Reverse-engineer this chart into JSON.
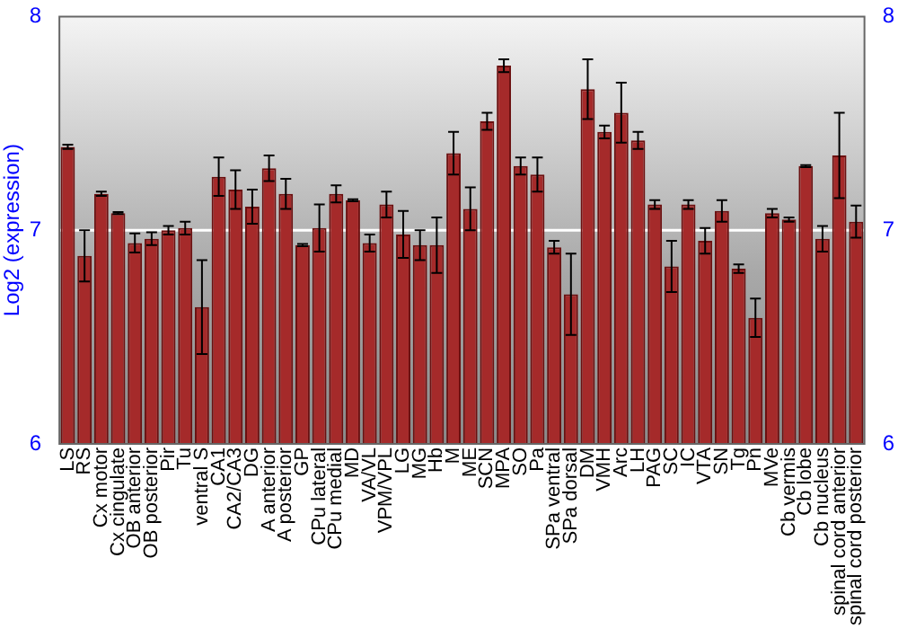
{
  "chart_data": {
    "type": "bar",
    "ylabel": "Log2 (expression)",
    "categories": [
      "LS",
      "RS",
      "Cx motor",
      "Cx cingulate",
      "OB anterior",
      "OB posterior",
      "Pir",
      "Tu",
      "ventral S",
      "CA1",
      "CA2/CA3",
      "DG",
      "A anterior",
      "A posterior",
      "GP",
      "CPu lateral",
      "CPu medial",
      "MD",
      "VA/VL",
      "VPM/VPL",
      "LG",
      "MG",
      "Hb",
      "M",
      "ME",
      "SCN",
      "MPA",
      "SO",
      "Pa",
      "SPa ventral",
      "SPa dorsal",
      "DM",
      "VMH",
      "Arc",
      "LH",
      "PAG",
      "SC",
      "IC",
      "VTA",
      "SN",
      "Tg",
      "Pn",
      "MVe",
      "Cb vermis",
      "Cb lobe",
      "Cb nucleus",
      "spinal cord anterior",
      "spinal cord posterior"
    ],
    "values": [
      7.39,
      6.88,
      7.17,
      7.08,
      6.94,
      6.96,
      7.0,
      7.01,
      6.64,
      7.25,
      7.19,
      7.11,
      7.29,
      7.17,
      6.93,
      7.01,
      7.17,
      7.14,
      6.94,
      7.12,
      6.98,
      6.93,
      6.93,
      7.36,
      7.1,
      7.51,
      7.77,
      7.3,
      7.26,
      6.92,
      6.7,
      7.66,
      7.46,
      7.55,
      7.42,
      7.12,
      6.83,
      7.12,
      6.95,
      7.09,
      6.82,
      6.59,
      7.08,
      7.05,
      7.3,
      6.96,
      7.35,
      7.04
    ],
    "errors": [
      0.01,
      0.12,
      0.01,
      0.005,
      0.045,
      0.03,
      0.02,
      0.03,
      0.22,
      0.09,
      0.09,
      0.08,
      0.06,
      0.07,
      0.005,
      0.11,
      0.04,
      0.005,
      0.04,
      0.06,
      0.11,
      0.07,
      0.13,
      0.1,
      0.1,
      0.04,
      0.03,
      0.04,
      0.08,
      0.03,
      0.19,
      0.14,
      0.03,
      0.14,
      0.04,
      0.02,
      0.12,
      0.02,
      0.06,
      0.05,
      0.02,
      0.09,
      0.02,
      0.01,
      0.005,
      0.06,
      0.2,
      0.075
    ],
    "color": "#a52a2a",
    "ylim": [
      6,
      8
    ],
    "yticks": [
      6,
      7,
      8
    ],
    "y2lim": [
      6,
      8
    ],
    "y2ticks": [
      6,
      7,
      8
    ],
    "grid": "y",
    "legend": false
  }
}
